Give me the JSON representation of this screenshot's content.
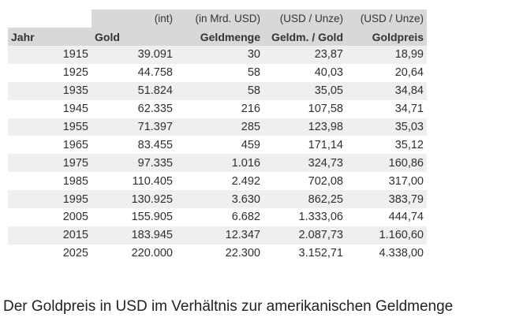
{
  "table": {
    "units": [
      "",
      "(int)",
      "(in Mrd. USD)",
      "(USD / Unze)",
      "(USD / Unze)"
    ],
    "headers": [
      "Jahr",
      "Gold",
      "Geldmenge",
      "Geldm. / Gold",
      "Goldpreis"
    ],
    "rows": [
      [
        "1915",
        "39.091",
        "30",
        "23,87",
        "18,99"
      ],
      [
        "1925",
        "44.758",
        "58",
        "40,03",
        "20,64"
      ],
      [
        "1935",
        "51.824",
        "58",
        "35,05",
        "34,84"
      ],
      [
        "1945",
        "62.335",
        "216",
        "107,58",
        "34,71"
      ],
      [
        "1955",
        "71.397",
        "285",
        "123,98",
        "35,03"
      ],
      [
        "1965",
        "83.455",
        "459",
        "171,14",
        "35,12"
      ],
      [
        "1975",
        "97.335",
        "1.016",
        "324,73",
        "160,86"
      ],
      [
        "1985",
        "110.405",
        "2.492",
        "702,08",
        "317,00"
      ],
      [
        "1995",
        "130.925",
        "3.630",
        "862,25",
        "383,79"
      ],
      [
        "2005",
        "155.905",
        "6.682",
        "1.333,06",
        "444,74"
      ],
      [
        "2015",
        "183.945",
        "12.347",
        "2.087,73",
        "1.160,60"
      ],
      [
        "2025",
        "220.000",
        "22.300",
        "3.152,71",
        "4.338,00"
      ]
    ]
  },
  "caption": "Der Goldpreis in USD im Verhältnis zur amerikanischen Geldmenge",
  "colors": {
    "header_bg": "#d8d8d8",
    "stripe_bg": "#efefef",
    "text": "#2f2f2f"
  }
}
